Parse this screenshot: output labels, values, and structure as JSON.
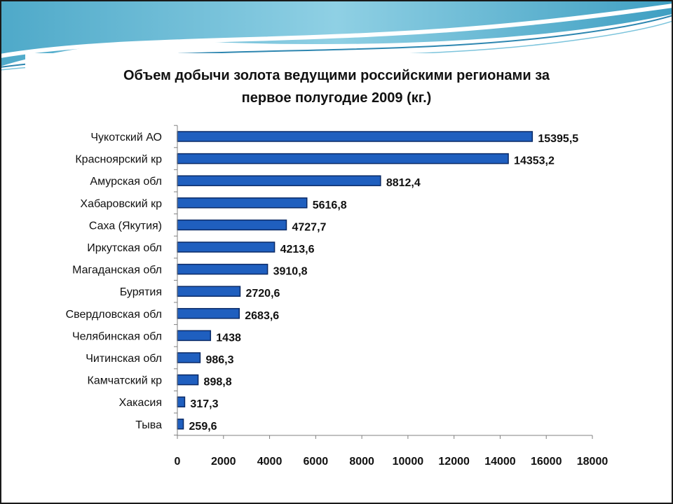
{
  "chart_data": {
    "type": "bar",
    "orientation": "horizontal",
    "title_lines": [
      "Объем добычи золота ведущими российскими регионами за",
      "первое полугодие 2009 (кг.)"
    ],
    "categories": [
      "Чукотский АО",
      "Красноярский кр",
      "Амурская обл",
      "Хабаровский кр",
      "Саха (Якутия)",
      "Иркутская обл",
      "Магаданская обл",
      "Бурятия",
      "Свердловская обл",
      "Челябинская обл",
      "Читинская обл",
      "Камчатский кр",
      "Хакасия",
      "Тыва"
    ],
    "values": [
      15395.5,
      14353.2,
      8812.4,
      5616.8,
      4727.7,
      4213.6,
      3910.8,
      2720.6,
      2683.6,
      1438,
      986.3,
      898.8,
      317.3,
      259.6
    ],
    "value_labels": [
      "15395,5",
      "14353,2",
      "8812,4",
      "5616,8",
      "4727,7",
      "4213,6",
      "3910,8",
      "2720,6",
      "2683,6",
      "1438",
      "986,3",
      "898,8",
      "317,3",
      "259,6"
    ],
    "x_ticks": [
      0,
      2000,
      4000,
      6000,
      8000,
      10000,
      12000,
      14000,
      16000,
      18000
    ],
    "xlim": [
      0,
      18000
    ],
    "grid": false,
    "legend": "none",
    "colors": {
      "bar": "#1f5fbf",
      "bar_edge": "#0a2a66",
      "axis": "#808080",
      "text": "#111111"
    }
  }
}
